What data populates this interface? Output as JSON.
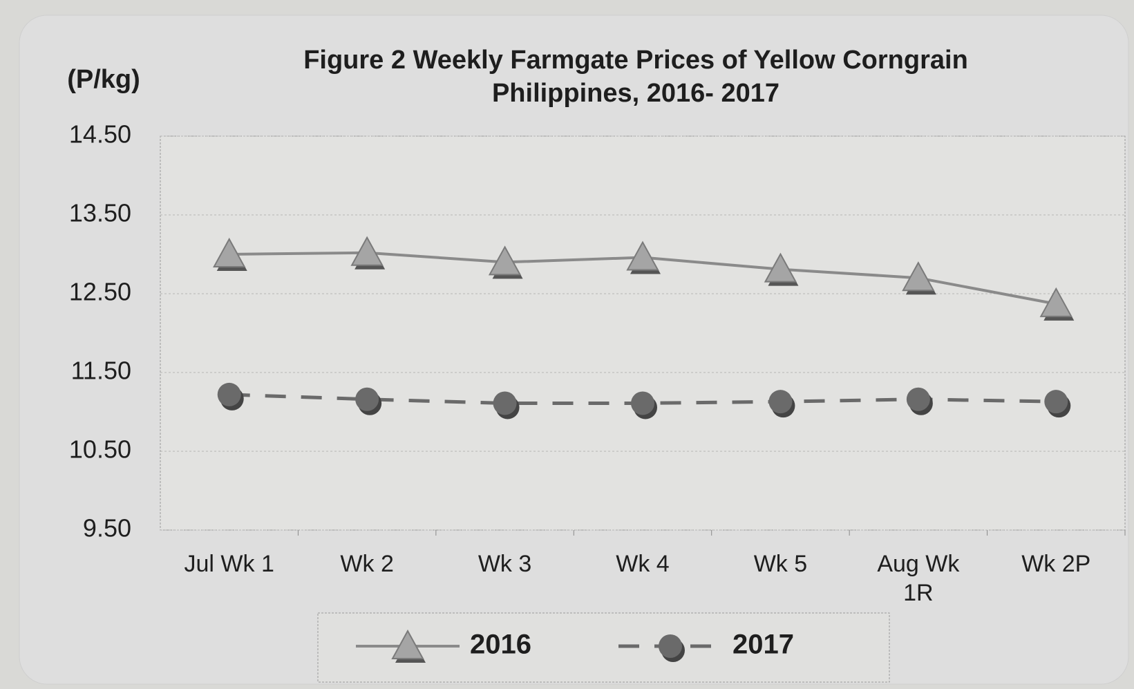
{
  "chart_data": {
    "type": "line",
    "title": "Figure 2  Weekly Farmgate Prices of Yellow Corngrain",
    "subtitle": "Philippines, 2016- 2017",
    "y_label": "(P/kg)",
    "categories": [
      "Jul Wk 1",
      "Wk 2",
      "Wk 3",
      "Wk 4",
      "Wk 5",
      "Aug Wk 1R",
      "Wk 2P"
    ],
    "series": [
      {
        "name": "2016",
        "color": "#8a8a8a",
        "marker": "triangle",
        "dashed": false,
        "values": [
          13.0,
          13.02,
          12.9,
          12.96,
          12.81,
          12.7,
          12.37
        ]
      },
      {
        "name": "2017",
        "color": "#6a6a6a",
        "marker": "circle",
        "dashed": true,
        "values": [
          11.22,
          11.16,
          11.11,
          11.11,
          11.13,
          11.16,
          11.13
        ]
      }
    ],
    "ylim": [
      9.5,
      14.5
    ],
    "yticks": [
      {
        "value": 9.5,
        "label": "9.50"
      },
      {
        "value": 10.5,
        "label": "10.50"
      },
      {
        "value": 11.5,
        "label": "11.50"
      },
      {
        "value": 12.5,
        "label": "12.50"
      },
      {
        "value": 13.5,
        "label": "13.50"
      },
      {
        "value": 14.5,
        "label": "14.50"
      }
    ],
    "grid": true,
    "legend": "bottom"
  }
}
